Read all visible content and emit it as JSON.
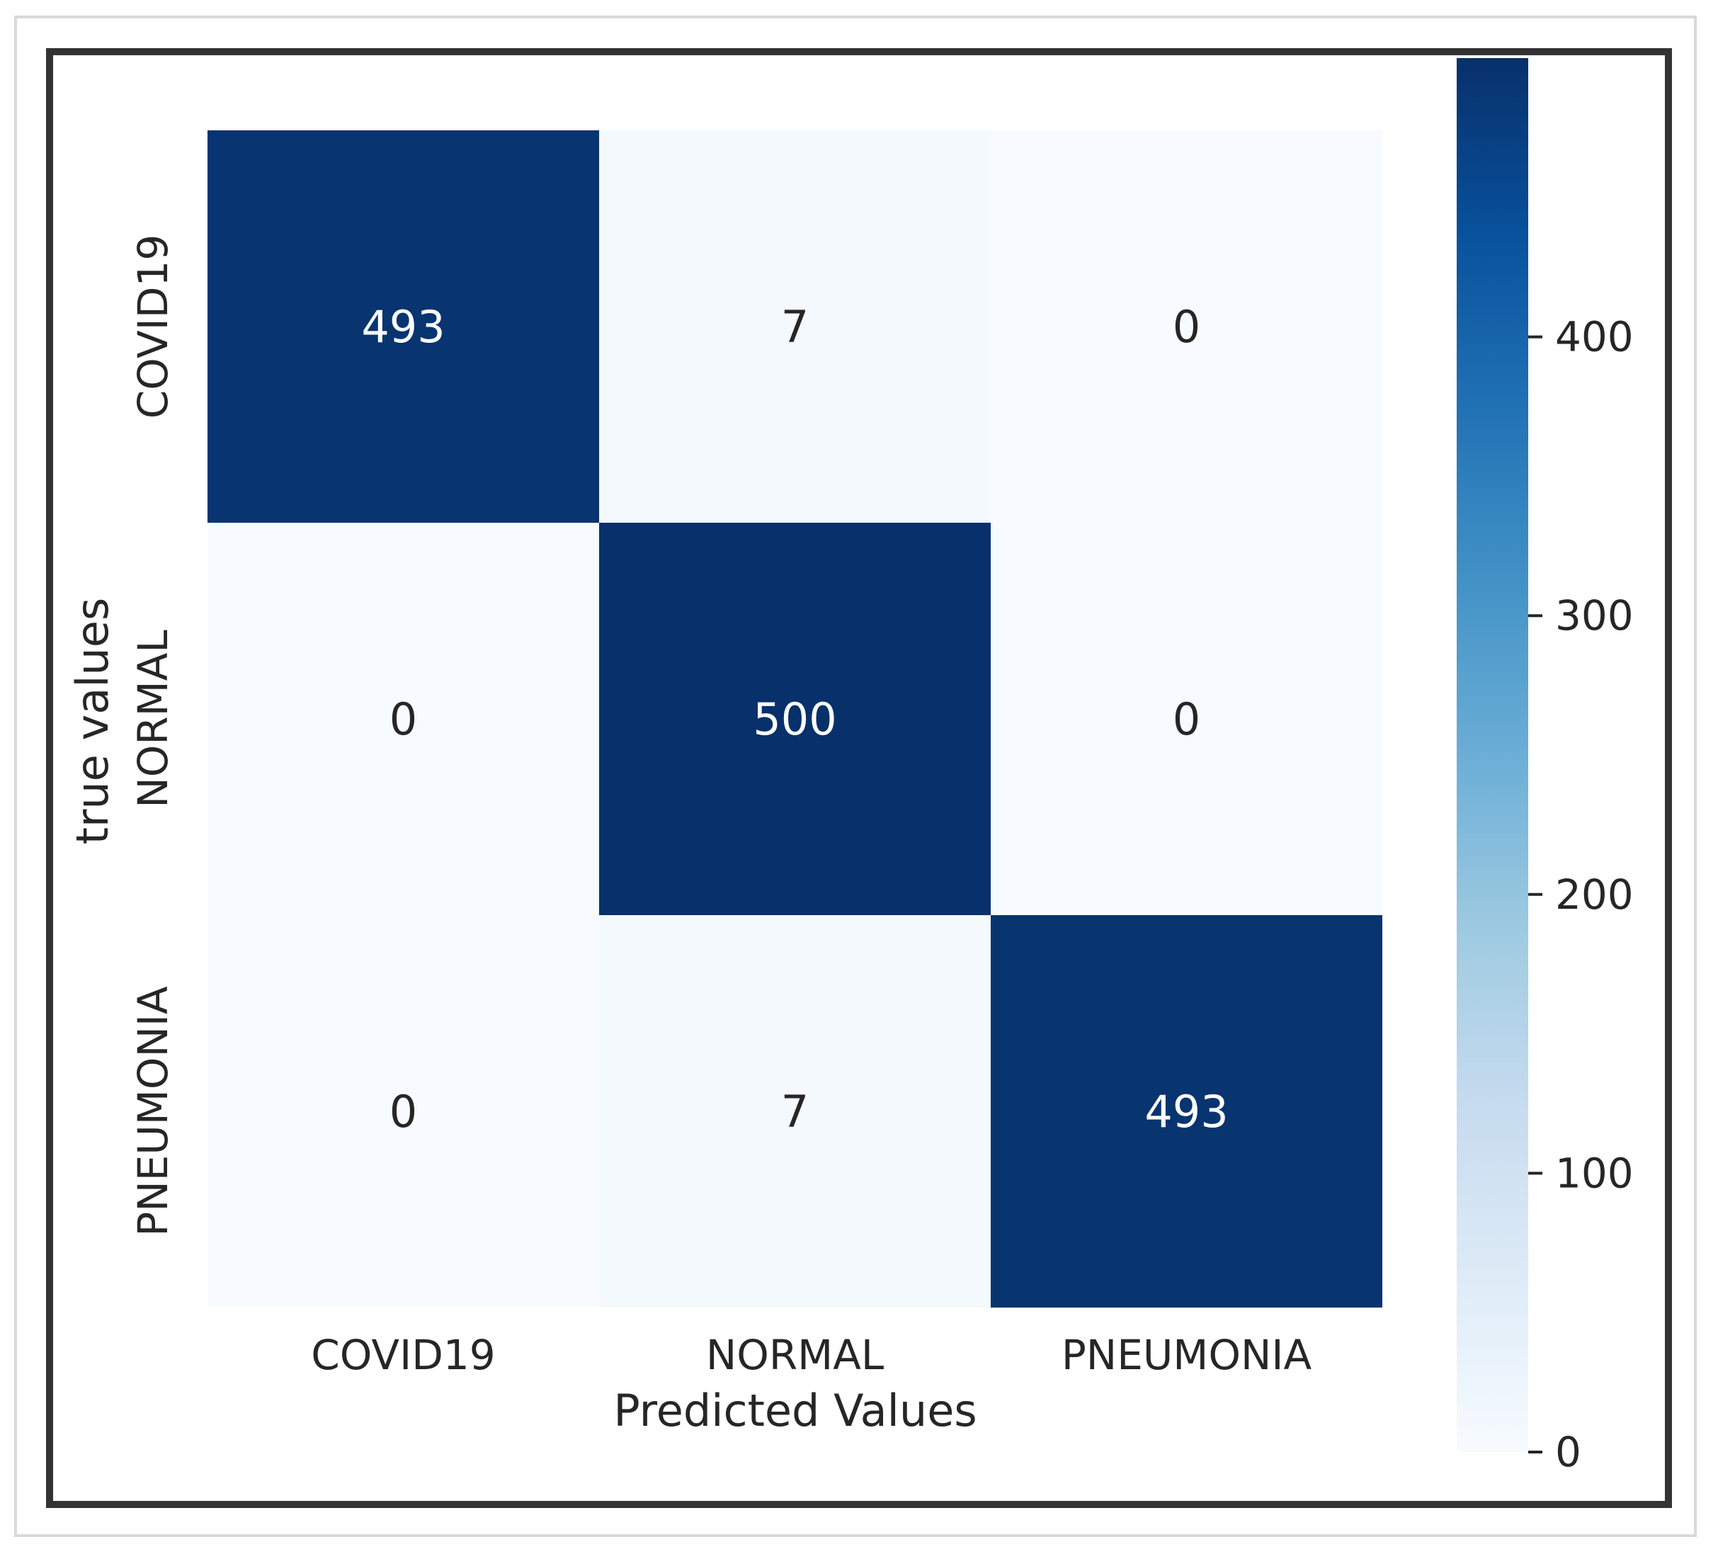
{
  "chart_data": {
    "type": "heatmap",
    "title": "",
    "xlabel": "Predicted Values",
    "ylabel": "true values",
    "x_categories": [
      "COVID19",
      "NORMAL",
      "PNEUMONIA"
    ],
    "y_categories": [
      "COVID19",
      "NORMAL",
      "PNEUMONIA"
    ],
    "values": [
      [
        493,
        7,
        0
      ],
      [
        0,
        500,
        0
      ],
      [
        0,
        7,
        493
      ]
    ],
    "colormap": "Blues",
    "colorbar": {
      "min": 0,
      "max": 500,
      "ticks": [
        0,
        100,
        200,
        300,
        400
      ],
      "tick_labels": [
        "0",
        "100",
        "200",
        "300",
        "400"
      ]
    },
    "annotations": true,
    "grid": false,
    "colors": {
      "text_dark": "#262626",
      "text_light": "#ffffff",
      "frame": "#333333"
    }
  }
}
